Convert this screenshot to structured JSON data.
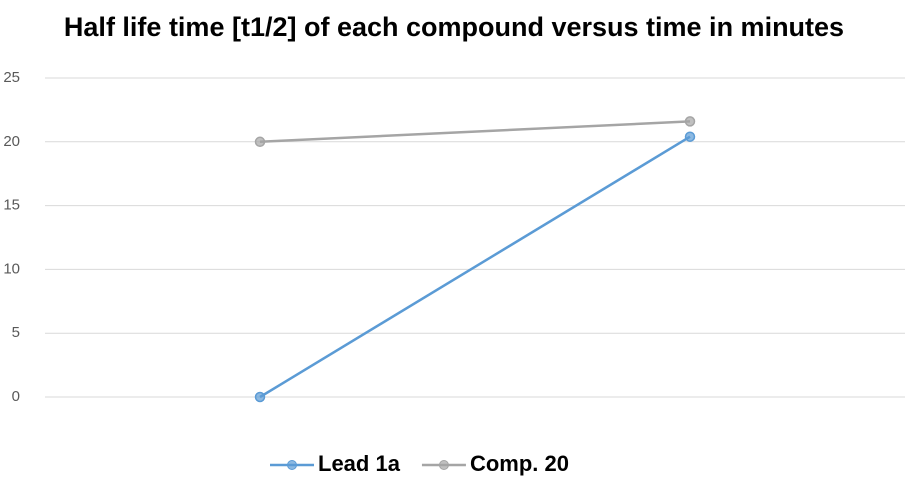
{
  "chart_data": {
    "type": "line",
    "title": "Half life time [t1/2] of each compound versus time in minutes",
    "categories": [
      null,
      null
    ],
    "series": [
      {
        "name": "Lead 1a",
        "color": "#5b9bd5",
        "values": [
          0,
          20.4
        ]
      },
      {
        "name": "Comp. 20",
        "color": "#a5a5a5",
        "values": [
          20,
          21.6
        ]
      }
    ],
    "ylim": [
      0,
      25
    ],
    "yticks": [
      0,
      5,
      10,
      15,
      20,
      25
    ],
    "grid": true,
    "legend": "bottom"
  }
}
